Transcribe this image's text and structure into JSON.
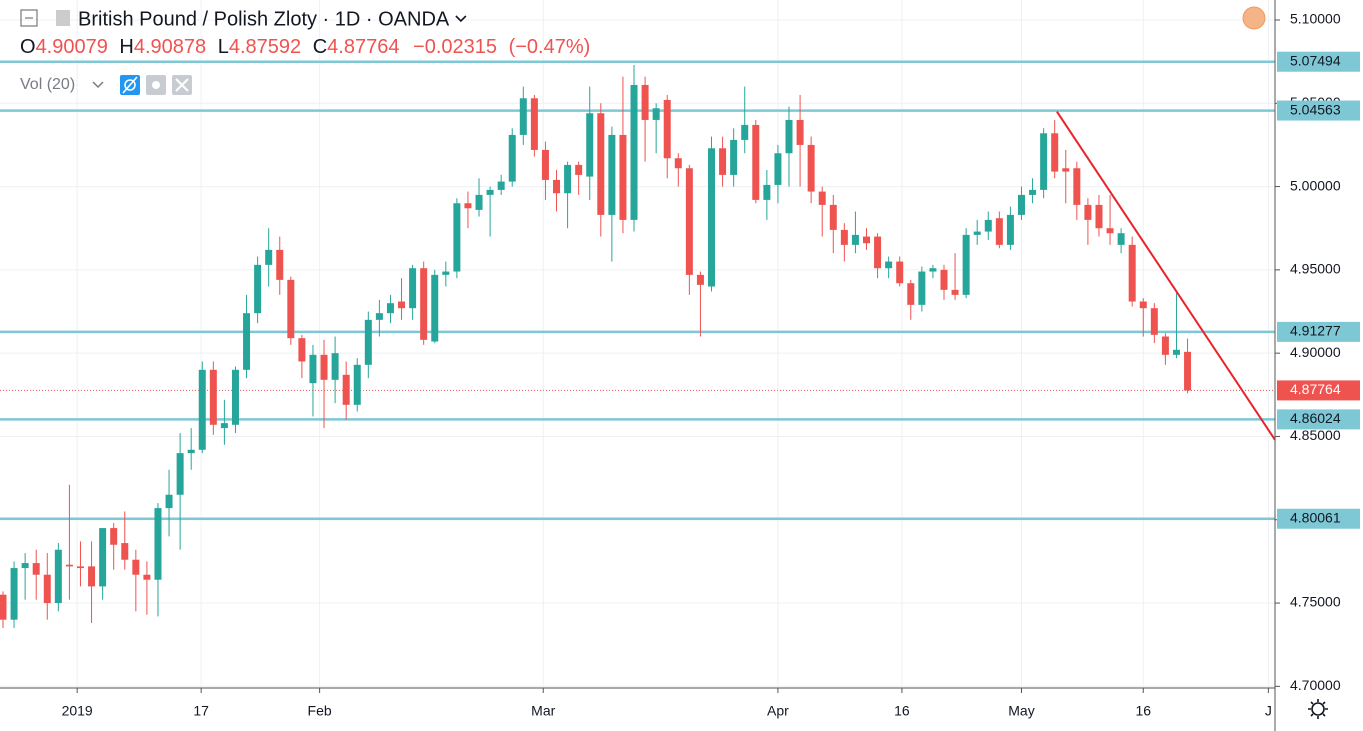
{
  "chart_data": {
    "type": "candlestick",
    "title": "British Pound / Polish Zloty · 1D · OANDA",
    "indicator": "Vol (20)",
    "ohlc_labels": [
      "O",
      "H",
      "L",
      "C"
    ],
    "change": {
      "value": -0.02315,
      "label": "−0.02315"
    },
    "change_pct": {
      "value": -0.47,
      "label": "(−0.47%)"
    },
    "up_color": "#26a69a",
    "down_color": "#ef5350",
    "open": [
      4.755,
      4.74,
      4.771,
      4.774,
      4.767,
      4.75,
      4.773,
      4.772,
      4.772,
      4.76,
      4.795,
      4.786,
      4.776,
      4.767,
      4.764,
      4.807,
      4.815,
      4.84,
      4.842,
      4.89,
      4.855,
      4.857,
      4.89,
      4.924,
      4.953,
      4.962,
      4.944,
      4.909,
      4.882,
      4.899,
      4.884,
      4.887,
      4.869,
      4.893,
      4.92,
      4.924,
      4.931,
      4.927,
      4.951,
      4.907,
      4.947,
      4.949,
      4.99,
      4.986,
      4.995,
      4.998,
      5.003,
      5.031,
      5.053,
      5.022,
      5.004,
      4.996,
      5.013,
      5.006,
      5.044,
      4.983,
      5.031,
      4.98,
      5.061,
      5.04,
      5.052,
      5.017,
      5.011,
      4.947,
      4.94,
      5.023,
      5.007,
      5.028,
      5.037,
      4.992,
      5.001,
      5.02,
      5.04,
      5.025,
      4.997,
      4.989,
      4.974,
      4.965,
      4.97,
      4.97,
      4.951,
      4.955,
      4.942,
      4.929,
      4.949,
      4.95,
      4.938,
      4.935,
      4.971,
      4.973,
      4.981,
      4.965,
      4.983,
      4.995,
      4.998,
      5.032,
      5.011,
      5.011,
      4.989,
      4.989,
      4.975,
      4.965,
      4.965,
      4.931,
      4.927,
      4.91,
      4.899,
      4.90079
    ],
    "high": [
      4.757,
      4.775,
      4.78,
      4.782,
      4.78,
      4.786,
      4.821,
      4.787,
      4.787,
      4.795,
      4.798,
      4.805,
      4.782,
      4.775,
      4.81,
      4.83,
      4.852,
      4.855,
      4.895,
      4.895,
      4.872,
      4.892,
      4.935,
      4.958,
      4.975,
      4.97,
      4.946,
      4.911,
      4.905,
      4.908,
      4.91,
      4.895,
      4.897,
      4.925,
      4.932,
      4.935,
      4.945,
      4.953,
      4.955,
      4.95,
      4.955,
      4.993,
      4.997,
      5.005,
      5.0,
      5.007,
      5.035,
      5.06,
      5.055,
      5.027,
      5.01,
      5.015,
      5.015,
      5.06,
      5.05,
      5.036,
      5.066,
      5.073,
      5.066,
      5.05,
      5.055,
      5.02,
      5.013,
      4.949,
      5.03,
      5.03,
      5.035,
      5.06,
      5.04,
      5.01,
      5.025,
      5.048,
      5.055,
      5.03,
      5.0,
      4.995,
      4.978,
      4.985,
      4.975,
      4.972,
      4.958,
      4.958,
      4.944,
      4.952,
      4.953,
      4.953,
      4.96,
      4.975,
      4.98,
      4.985,
      4.985,
      4.988,
      5.0,
      5.005,
      5.035,
      5.04,
      5.022,
      5.015,
      4.993,
      4.995,
      4.995,
      4.975,
      4.97,
      4.933,
      4.93,
      4.912,
      4.936,
      4.90878
    ],
    "low": [
      4.735,
      4.735,
      4.752,
      4.752,
      4.74,
      4.745,
      4.752,
      4.76,
      4.738,
      4.752,
      4.77,
      4.77,
      4.745,
      4.743,
      4.742,
      4.79,
      4.782,
      4.83,
      4.84,
      4.851,
      4.845,
      4.852,
      4.885,
      4.918,
      4.94,
      4.935,
      4.905,
      4.885,
      4.862,
      4.855,
      4.87,
      4.86,
      4.865,
      4.885,
      4.91,
      4.918,
      4.92,
      4.92,
      4.905,
      4.906,
      4.94,
      4.945,
      4.975,
      4.982,
      4.97,
      4.995,
      5.0,
      5.025,
      5.018,
      4.992,
      4.985,
      4.975,
      4.995,
      4.992,
      4.97,
      4.955,
      4.972,
      4.973,
      5.015,
      5.02,
      5.005,
      5.0,
      4.935,
      4.91,
      4.937,
      5.0,
      5.0,
      5.02,
      4.99,
      4.98,
      4.99,
      5.0,
      5.0,
      4.99,
      4.97,
      4.96,
      4.955,
      4.96,
      4.962,
      4.945,
      4.945,
      4.94,
      4.92,
      4.925,
      4.945,
      4.932,
      4.932,
      4.933,
      4.965,
      4.968,
      4.963,
      4.962,
      4.98,
      4.99,
      4.993,
      5.005,
      4.99,
      4.98,
      4.965,
      4.97,
      4.965,
      4.96,
      4.928,
      4.91,
      4.906,
      4.893,
      4.897,
      4.87592
    ],
    "close": [
      4.74,
      4.771,
      4.774,
      4.767,
      4.75,
      4.782,
      4.772,
      4.771,
      4.76,
      4.795,
      4.785,
      4.776,
      4.767,
      4.764,
      4.807,
      4.815,
      4.84,
      4.842,
      4.89,
      4.857,
      4.858,
      4.89,
      4.924,
      4.953,
      4.962,
      4.944,
      4.909,
      4.895,
      4.899,
      4.884,
      4.9,
      4.869,
      4.893,
      4.92,
      4.924,
      4.93,
      4.927,
      4.951,
      4.908,
      4.947,
      4.949,
      4.99,
      4.987,
      4.995,
      4.998,
      5.003,
      5.031,
      5.053,
      5.022,
      5.004,
      4.996,
      5.013,
      5.007,
      5.044,
      4.983,
      5.031,
      4.98,
      5.061,
      5.04,
      5.047,
      5.017,
      5.011,
      4.947,
      4.941,
      5.023,
      5.007,
      5.028,
      5.037,
      4.992,
      5.001,
      5.02,
      5.04,
      5.025,
      4.997,
      4.989,
      4.974,
      4.965,
      4.971,
      4.966,
      4.951,
      4.955,
      4.942,
      4.929,
      4.949,
      4.951,
      4.938,
      4.935,
      4.971,
      4.973,
      4.98,
      4.965,
      4.983,
      4.995,
      4.998,
      5.032,
      5.009,
      5.009,
      4.989,
      4.98,
      4.975,
      4.972,
      4.972,
      4.931,
      4.927,
      4.911,
      4.899,
      4.902,
      4.87764
    ],
    "xlim": [
      -0.27,
      114.9
    ],
    "ylim": [
      4.699,
      5.112
    ],
    "yticks": [
      {
        "value": 4.7,
        "label": "4.70000"
      },
      {
        "value": 4.75,
        "label": "4.75000"
      },
      {
        "value": 4.8,
        "label": "4.80000"
      },
      {
        "value": 4.85,
        "label": "4.85000"
      },
      {
        "value": 4.9,
        "label": "4.90000"
      },
      {
        "value": 4.95,
        "label": "4.95000"
      },
      {
        "value": 5.0,
        "label": "5.00000"
      },
      {
        "value": 5.05,
        "label": "5.05000"
      },
      {
        "value": 5.1,
        "label": "5.10000"
      }
    ],
    "xticks": [
      {
        "value": 6.7,
        "label": "2019"
      },
      {
        "value": 17.9,
        "label": "17"
      },
      {
        "value": 28.6,
        "label": "Feb"
      },
      {
        "value": 48.8,
        "label": "Mar"
      },
      {
        "value": 70,
        "label": "Apr"
      },
      {
        "value": 81.2,
        "label": "16"
      },
      {
        "value": 92,
        "label": "May"
      },
      {
        "value": 103,
        "label": "16"
      },
      {
        "value": 114.3,
        "label": "J"
      }
    ],
    "grid": true,
    "levels": {
      "values": [
        5.07494,
        5.04563,
        4.91277,
        4.86024,
        4.80061
      ],
      "color": "#7ec8d6"
    },
    "trendline": {
      "x": [
        95.2,
        114.9
      ],
      "y": [
        5.045,
        4.848
      ],
      "color": "#e8232b"
    },
    "last_price_color": "#ef5350"
  }
}
